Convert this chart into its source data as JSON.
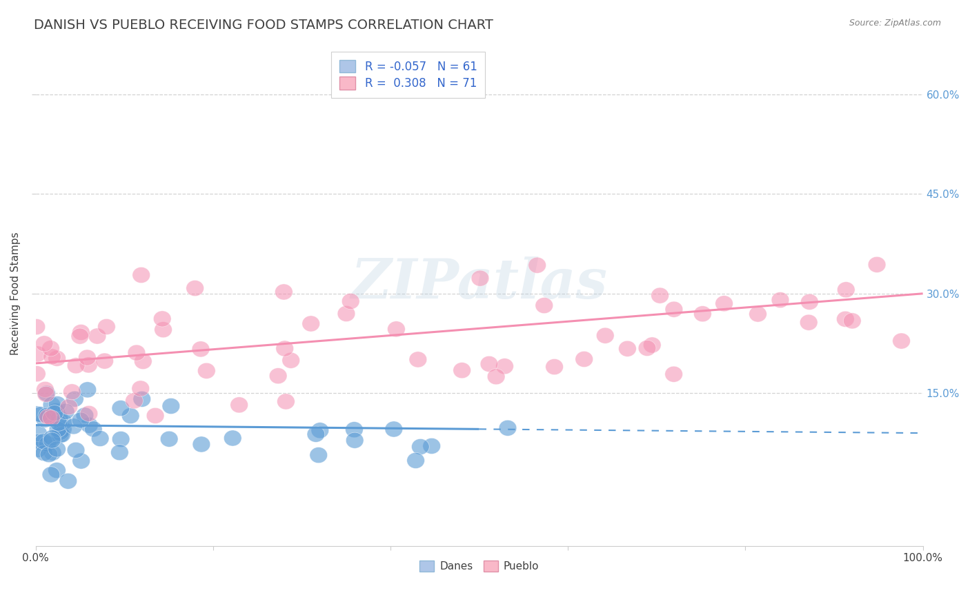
{
  "title": "DANISH VS PUEBLO RECEIVING FOOD STAMPS CORRELATION CHART",
  "source": "Source: ZipAtlas.com",
  "ylabel": "Receiving Food Stamps",
  "xlim": [
    0.0,
    1.0
  ],
  "ylim": [
    -0.08,
    0.68
  ],
  "ytick_labels": [
    "15.0%",
    "30.0%",
    "45.0%",
    "60.0%"
  ],
  "ytick_positions": [
    0.15,
    0.3,
    0.45,
    0.6
  ],
  "legend_bottom": [
    "Danes",
    "Pueblo"
  ],
  "danes_color": "#5b9bd5",
  "pueblo_color": "#f48fb1",
  "danes_legend_color": "#aec6e8",
  "pueblo_legend_color": "#f9b8c8",
  "title_color": "#404040",
  "source_color": "#808080",
  "watermark": "ZIPatlas",
  "background_color": "#ffffff",
  "grid_color": "#c8c8c8",
  "danes_trend_start_x": 0.0,
  "danes_trend_end_x": 0.5,
  "danes_trend_start_y": 0.102,
  "danes_trend_end_y": 0.096,
  "pueblo_trend_start_x": 0.0,
  "pueblo_trend_end_x": 1.0,
  "pueblo_trend_start_y": 0.195,
  "pueblo_trend_end_y": 0.3,
  "title_fontsize": 14,
  "axis_label_fontsize": 11,
  "tick_fontsize": 11
}
